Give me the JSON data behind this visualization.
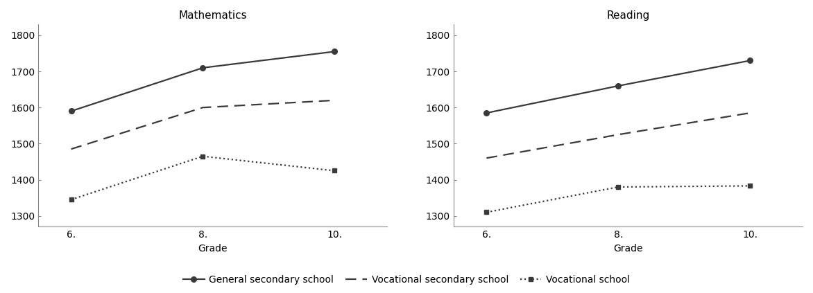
{
  "math": {
    "title": "Mathematics",
    "grades": [
      6,
      8,
      10
    ],
    "xtick_labels": [
      "6.",
      "8.",
      "10."
    ],
    "general": [
      1590,
      1710,
      1755
    ],
    "vocational_sec": [
      1485,
      1600,
      1620
    ],
    "vocational": [
      1345,
      1465,
      1425
    ],
    "ylim": [
      1270,
      1830
    ],
    "yticks": [
      1300,
      1400,
      1500,
      1600,
      1700,
      1800
    ],
    "xlabel": "Grade"
  },
  "reading": {
    "title": "Reading",
    "grades": [
      6,
      8,
      10
    ],
    "xtick_labels": [
      "6.",
      "8.",
      "10."
    ],
    "general": [
      1585,
      1660,
      1730
    ],
    "vocational_sec": [
      1460,
      1525,
      1585
    ],
    "vocational": [
      1310,
      1380,
      1383
    ],
    "ylim": [
      1270,
      1830
    ],
    "yticks": [
      1300,
      1400,
      1500,
      1600,
      1700,
      1800
    ],
    "xlabel": "Grade"
  },
  "legend": {
    "general_label": "General secondary school",
    "vocational_sec_label": "Vocational secondary school",
    "vocational_label": "Vocational school"
  },
  "line_color": "#3a3a3a",
  "background_color": "#ffffff",
  "title_fontsize": 11,
  "label_fontsize": 10,
  "tick_fontsize": 10,
  "legend_fontsize": 10
}
